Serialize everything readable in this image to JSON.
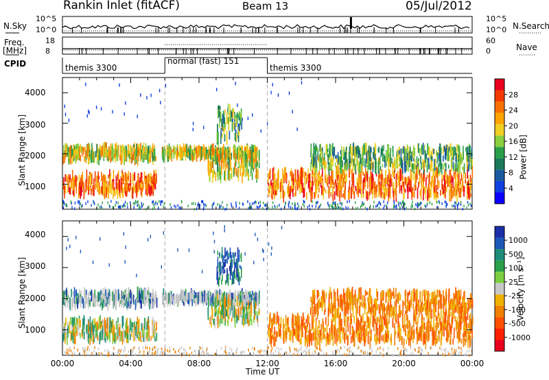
{
  "header": {
    "station": "Rankin Inlet (fitACF)",
    "beam": "Beam 13",
    "date": "05/Jul/2012"
  },
  "noise_panel": {
    "left_label": "N.Sky",
    "right_label": "N.Search",
    "left_ticks": [
      "10^5",
      "10^0"
    ],
    "right_ticks": [
      "10^5",
      "10^0"
    ]
  },
  "freq_panel": {
    "left_label": "Freq.",
    "left_unit": "[MHz]",
    "right_label": "Nave",
    "left_ticks": [
      "18",
      "8"
    ],
    "right_ticks": [
      "60",
      "0"
    ]
  },
  "cpid": {
    "label": "CPID",
    "segments": [
      {
        "name": "themis 3300",
        "start": 0,
        "end": 6
      },
      {
        "name": "normal (fast) 151",
        "start": 6,
        "end": 12
      },
      {
        "name": "themis 3300",
        "start": 12,
        "end": 24
      }
    ]
  },
  "x_axis": {
    "label": "Time UT",
    "ticks": [
      "00:00",
      "04:00",
      "08:00",
      "12:00",
      "16:00",
      "20:00",
      "00:00"
    ],
    "range_hours": [
      0,
      24
    ]
  },
  "power_panel": {
    "ylabel": "Slant Range [km]",
    "yticks": [
      "4000",
      "3000",
      "2000",
      "1000"
    ],
    "colorbar": {
      "title": "Power [dB]",
      "labels": [
        "28",
        "24",
        "20",
        "16",
        "12",
        "8",
        "4"
      ],
      "colors": [
        "#e8001c",
        "#f23a00",
        "#f87000",
        "#ffa500",
        "#f0d020",
        "#8cd040",
        "#2aa048",
        "#1a7a5a",
        "#1a5aa0",
        "#1040e0",
        "#0a00ff"
      ]
    }
  },
  "velocity_panel": {
    "ylabel": "Slant Range [km]",
    "yticks": [
      "4000",
      "3000",
      "2000",
      "1000"
    ],
    "colorbar": {
      "title": "Velocity [m s⁻¹]",
      "labels": [
        "1000",
        "500",
        "100",
        "25",
        "-25",
        "-100",
        "-500",
        "-1000"
      ],
      "colors": [
        "#1c2fa8",
        "#1c58b8",
        "#1e8c7a",
        "#2aa048",
        "#7cd040",
        "#c8c8c8",
        "#f0b000",
        "#f08000",
        "#ff5000",
        "#ff2000",
        "#e8001c"
      ]
    }
  },
  "chart_data": {
    "type": "heatmap",
    "title": "Rankin Inlet (fitACF) Beam 13 05/Jul/2012",
    "xlabel": "Time UT",
    "ylabel": "Slant Range [km]",
    "x_range_hours": [
      0,
      24
    ],
    "y_range_km": [
      180,
      4500
    ],
    "scatter_bands_power": [
      {
        "t_start": 0.0,
        "t_end": 5.5,
        "range_km": [
          700,
          1300
        ],
        "level": "high"
      },
      {
        "t_start": 0.0,
        "t_end": 5.5,
        "range_km": [
          1800,
          2200
        ],
        "level": "medium"
      },
      {
        "t_start": 5.8,
        "t_end": 11.5,
        "range_km": [
          1900,
          2150
        ],
        "level": "medium"
      },
      {
        "t_start": 8.5,
        "t_end": 11.5,
        "range_km": [
          1200,
          2000
        ],
        "level": "medium"
      },
      {
        "t_start": 9.0,
        "t_end": 10.5,
        "range_km": [
          2500,
          3500
        ],
        "level": "low"
      },
      {
        "t_start": 12.0,
        "t_end": 24.0,
        "range_km": [
          600,
          1400
        ],
        "level": "high"
      },
      {
        "t_start": 14.5,
        "t_end": 24.0,
        "range_km": [
          1500,
          2200
        ],
        "level": "low"
      }
    ],
    "power_scale_db": [
      0,
      30
    ],
    "velocity_scale_ms": [
      -1000,
      1000
    ]
  }
}
